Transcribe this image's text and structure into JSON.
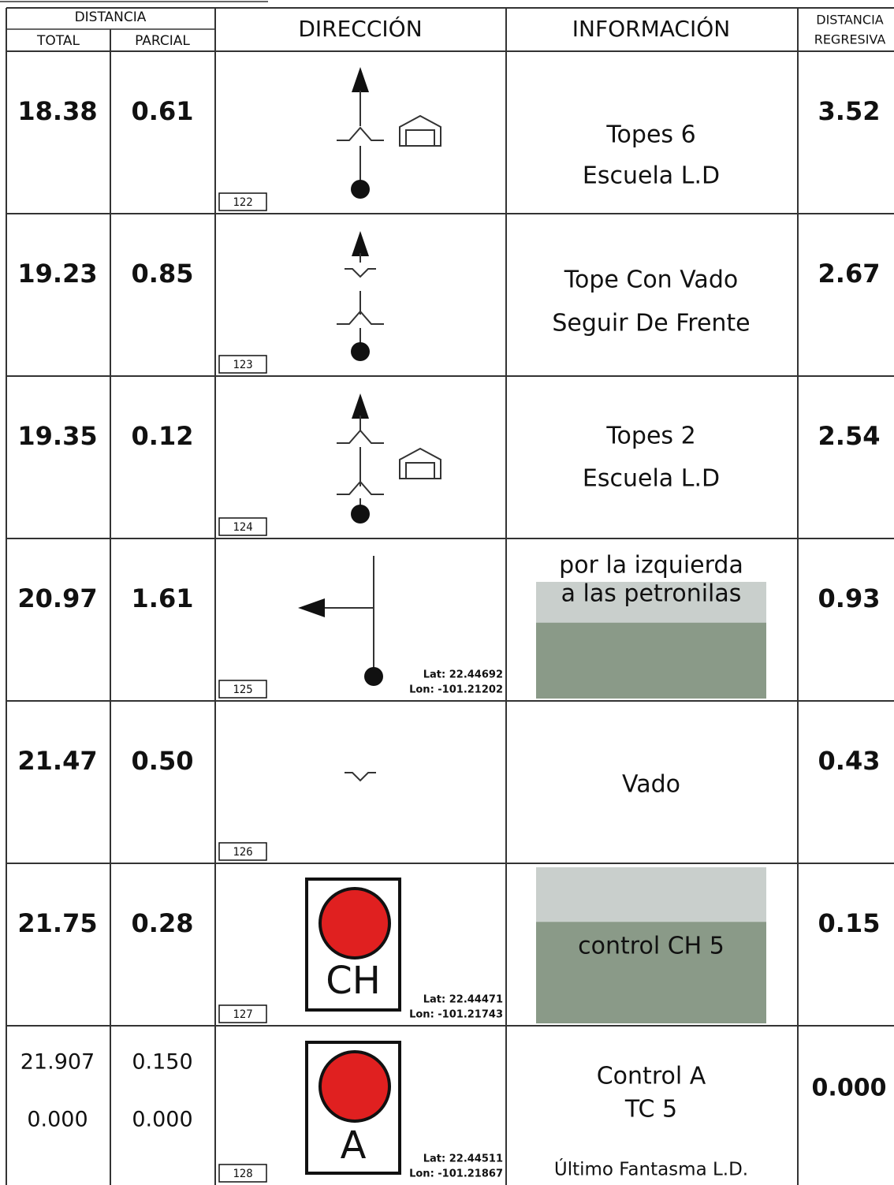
{
  "header": {
    "distancia": "DISTANCIA",
    "total": "TOTAL",
    "parcial": "PARCIAL",
    "direccion": "DIRECCIÓN",
    "informacion": "INFORMACIÓN",
    "distancia_regresiva": [
      "DISTANCIA",
      "REGRESIVA"
    ]
  },
  "rows": [
    {
      "total": "18.38",
      "parcial": "0.61",
      "number": "122",
      "info": [
        "Topes 6",
        "Escuela L.D"
      ],
      "regresiva": "3.52"
    },
    {
      "total": "19.23",
      "parcial": "0.85",
      "number": "123",
      "info": [
        "Tope Con Vado",
        "Seguir De Frente"
      ],
      "regresiva": "2.67"
    },
    {
      "total": "19.35",
      "parcial": "0.12",
      "number": "124",
      "info": [
        "Topes 2",
        "Escuela L.D"
      ],
      "regresiva": "2.54"
    },
    {
      "total": "20.97",
      "parcial": "1.61",
      "number": "125",
      "info": [
        "por la izquierda",
        "a las petronilas"
      ],
      "lat": "Lat: 22.44692",
      "lon": "Lon: -101.21202",
      "regresiva": "0.93"
    },
    {
      "total": "21.47",
      "parcial": "0.50",
      "number": "126",
      "info": [
        "Vado"
      ],
      "regresiva": "0.43"
    },
    {
      "total": "21.75",
      "parcial": "0.28",
      "number": "127",
      "sign": "CH",
      "info": [
        "control CH 5"
      ],
      "lat": "Lat: 22.44471",
      "lon": "Lon: -101.21743",
      "regresiva": "0.15"
    },
    {
      "total": [
        "21.907",
        "0.000"
      ],
      "parcial": [
        "0.150",
        "0.000"
      ],
      "number": "128",
      "sign": "A",
      "info": [
        "Control A",
        "TC 5"
      ],
      "note": "Último Fantasma L.D.",
      "lat": "Lat: 22.44511",
      "lon": "Lon: -101.21867",
      "regresiva": "0.000"
    }
  ]
}
